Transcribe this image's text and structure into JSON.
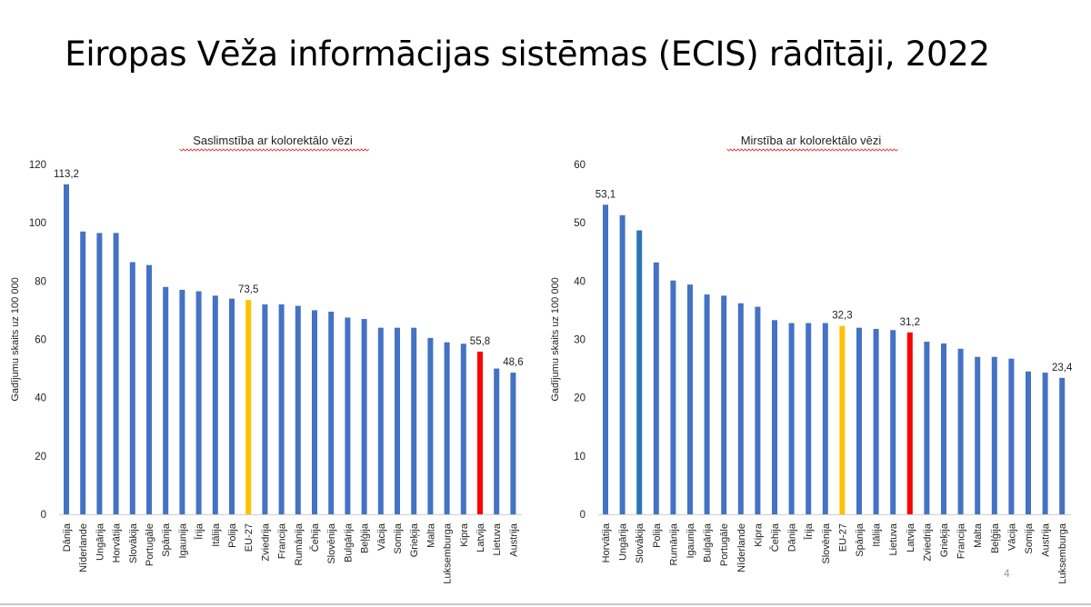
{
  "slide": {
    "title": "Eiropas Vēža informācijas sistēmas (ECIS) rādītāji, 2022",
    "page_number": "4"
  },
  "colors": {
    "default_bar": "#4472C4",
    "eu_bar": "#FFC000",
    "latvia_bar": "#FF0000",
    "slovakia_bar_right": "#2E75B6",
    "spellcheck_underline": "#E02020"
  },
  "chart_data": [
    {
      "type": "bar",
      "title": "Saslimstība ar kolorektālo vēzi",
      "ylabel": "Gadījumu skaits uz 100 000",
      "ylim": [
        0,
        120
      ],
      "yticks": [
        0,
        20,
        40,
        60,
        80,
        100,
        120
      ],
      "grid": false,
      "categories": [
        "Dānija",
        "Nīderlande",
        "Ungārija",
        "Horvātija",
        "Slovākija",
        "Portugāle",
        "Spānija",
        "Igaunija",
        "Īrija",
        "Itālija",
        "Polija",
        "EU-27",
        "Zviedrija",
        "Francija",
        "Rumānija",
        "Čehija",
        "Slovēnija",
        "Bulgārija",
        "Beļģija",
        "Vācija",
        "Somija",
        "Grieķija",
        "Malta",
        "Luksemburga",
        "Kipra",
        "Latvija",
        "Lietuva",
        "Austrija"
      ],
      "values": [
        113.2,
        97,
        96.5,
        96.5,
        86.5,
        85.5,
        78,
        77,
        76.5,
        75,
        74,
        73.5,
        72,
        72,
        71.5,
        70,
        69.5,
        67.5,
        67,
        64,
        64,
        64,
        60.5,
        59,
        58.5,
        55.8,
        50,
        48.6
      ],
      "highlight": {
        "EU-27": "#FFC000",
        "Latvija": "#FF0000"
      },
      "data_labels": [
        {
          "category": "Dānija",
          "text": "113,2"
        },
        {
          "category": "EU-27",
          "text": "73,5"
        },
        {
          "category": "Latvija",
          "text": "55,8"
        },
        {
          "category": "Austrija",
          "text": "48,6"
        }
      ]
    },
    {
      "type": "bar",
      "title": "Mirstība ar kolorektālo vēzi",
      "ylabel": "Gadījumu skaits uz 100 000",
      "ylim": [
        0,
        60
      ],
      "yticks": [
        0,
        10,
        20,
        30,
        40,
        50,
        60
      ],
      "grid": false,
      "categories": [
        "Horvātija",
        "Ungārija",
        "Slovākija",
        "Polija",
        "Rumānija",
        "Igaunija",
        "Bulgārija",
        "Portugāle",
        "Nīderlande",
        "Kipra",
        "Čehija",
        "Dānija",
        "Īrija",
        "Slovēnija",
        "EU-27",
        "Spānija",
        "Itālija",
        "Lietuva",
        "Latvija",
        "Zviedrija",
        "Grieķija",
        "Francija",
        "Malta",
        "Beļģija",
        "Vācija",
        "Somija",
        "Austrija",
        "Luksemburga"
      ],
      "values": [
        53.1,
        51.3,
        48.7,
        43.2,
        40.1,
        39.4,
        37.7,
        37.5,
        36.2,
        35.6,
        33.3,
        32.8,
        32.8,
        32.8,
        32.3,
        32,
        31.8,
        31.6,
        31.2,
        29.6,
        29.3,
        28.4,
        27,
        27,
        26.7,
        24.5,
        24.3,
        23.4
      ],
      "highlight": {
        "EU-27": "#FFC000",
        "Latvija": "#FF0000",
        "Slovākija": "#2E75B6"
      },
      "data_labels": [
        {
          "category": "Horvātija",
          "text": "53,1"
        },
        {
          "category": "EU-27",
          "text": "32,3"
        },
        {
          "category": "Latvija",
          "text": "31,2"
        },
        {
          "category": "Luksemburga",
          "text": "23,4"
        }
      ]
    }
  ]
}
